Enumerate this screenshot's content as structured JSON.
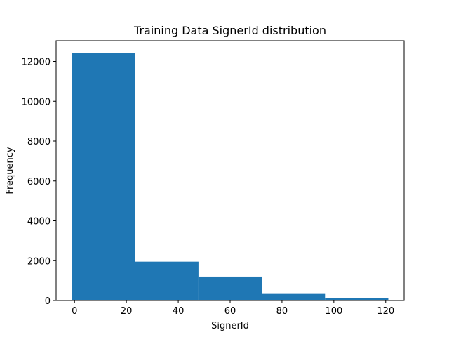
{
  "chart_data": {
    "type": "bar",
    "title": "Training Data SignerId distribution",
    "xlabel": "SignerId",
    "ylabel": "Frequency",
    "bin_edges": [
      -1,
      23.4,
      47.8,
      72.2,
      96.6,
      121
    ],
    "values": [
      12420,
      1950,
      1200,
      330,
      130
    ],
    "xlim": [
      -7.1,
      127.1
    ],
    "ylim": [
      0,
      13040
    ],
    "xticks": [
      0,
      20,
      40,
      60,
      80,
      100,
      120
    ],
    "yticks": [
      0,
      2000,
      4000,
      6000,
      8000,
      10000,
      12000
    ],
    "bar_color": "#1f77b4",
    "grid": false
  }
}
